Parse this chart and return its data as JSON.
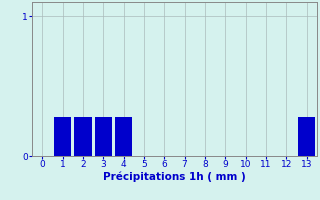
{
  "categories": [
    0,
    1,
    2,
    3,
    4,
    5,
    6,
    7,
    8,
    9,
    10,
    11,
    12,
    13
  ],
  "values": [
    0,
    0.28,
    0.28,
    0.28,
    0.28,
    0,
    0,
    0,
    0,
    0,
    0,
    0,
    0,
    0.28
  ],
  "bar_color": "#0000cc",
  "background_color": "#d5f2ee",
  "grid_color": "#aabbbb",
  "axis_color": "#888888",
  "xlabel": "Précipitations 1h ( mm )",
  "xlabel_color": "#0000cc",
  "xlabel_fontsize": 7.5,
  "ytick_labels": [
    "0",
    "1"
  ],
  "ytick_values": [
    0,
    1
  ],
  "ylim": [
    0,
    1.1
  ],
  "xlim": [
    -0.5,
    13.5
  ],
  "tick_label_color": "#0000cc",
  "tick_fontsize": 6.5,
  "bar_width": 0.85
}
